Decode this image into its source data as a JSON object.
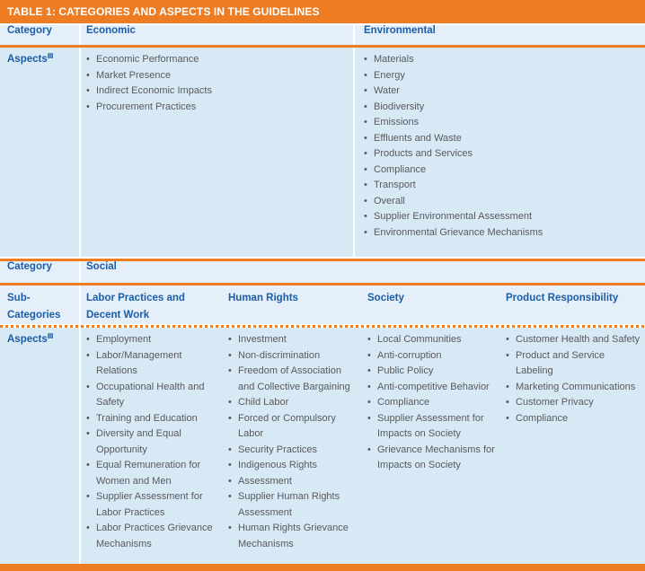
{
  "title": "TABLE 1: CATEGORIES AND ASPECTS IN THE GUIDELINES",
  "labels": {
    "category": "Category",
    "subcategories": "Sub-Categories",
    "aspects": "Aspects",
    "aspects_marker": "▤"
  },
  "colors": {
    "accent_orange": "#ED7C23",
    "header_blue": "#1C5DA8",
    "body_text_gray": "#58595B",
    "header_row_bg": "#E4EFF9",
    "body_row_bg": "#D8E9F6"
  },
  "economic": {
    "header": "Economic",
    "items": [
      "Economic Performance",
      "Market Presence",
      "Indirect Economic Impacts",
      "Procurement Practices"
    ]
  },
  "environmental": {
    "header": "Environmental",
    "items": [
      "Materials",
      "Energy",
      "Water",
      "Biodiversity",
      "Emissions",
      "Effluents and Waste",
      "Products and Services",
      "Compliance",
      "Transport",
      "Overall",
      "Supplier Environmental Assessment",
      "Environmental Grievance Mechanisms"
    ]
  },
  "social": {
    "header": "Social"
  },
  "labor": {
    "header": "Labor Practices and Decent Work",
    "items": [
      "Employment",
      "Labor/Management Relations",
      "Occupational Health and Safety",
      "Training and Education",
      "Diversity and Equal Opportunity",
      "Equal Remuneration for Women and Men",
      "Supplier Assessment for Labor Practices",
      "Labor Practices Grievance Mechanisms"
    ]
  },
  "human_rights": {
    "header": "Human Rights",
    "items": [
      "Investment",
      "Non-discrimination",
      "Freedom of Association and Collective Bargaining",
      "Child Labor",
      "Forced or Compulsory Labor",
      "Security Practices",
      "Indigenous Rights",
      "Assessment",
      "Supplier Human Rights Assessment",
      "Human Rights Grievance Mechanisms"
    ]
  },
  "society": {
    "header": "Society",
    "items": [
      "Local Communities",
      "Anti-corruption",
      "Public Policy",
      "Anti-competitive Behavior",
      "Compliance",
      "Supplier Assessment for Impacts on Society",
      "Grievance Mechanisms for Impacts on Society"
    ]
  },
  "product_responsibility": {
    "header": "Product Responsibility",
    "items": [
      "Customer Health and Safety",
      "Product and Service Labeling",
      "Marketing Communications",
      "Customer Privacy",
      "Compliance"
    ]
  }
}
